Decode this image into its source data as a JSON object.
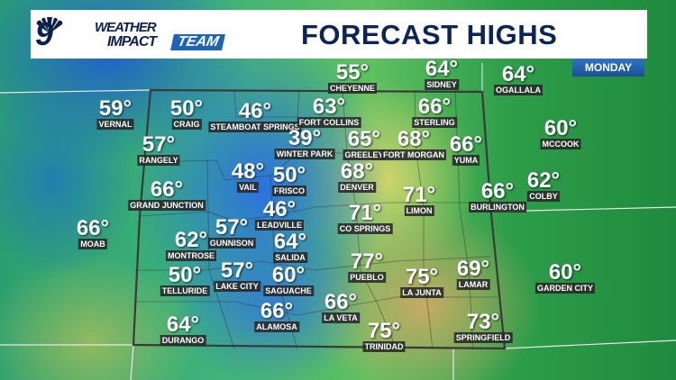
{
  "header": {
    "logo": {
      "channel": "9",
      "line1": "WEATHER",
      "line2": "IMPACT",
      "badge": "TEAM"
    },
    "title": "FORECAST HIGHS",
    "day": "MONDAY"
  },
  "colors": {
    "title": "#0d2457",
    "badge": "#1e63b5",
    "label_bg": "#282828"
  },
  "cities": [
    {
      "name": "CHEYENNE",
      "temp": "55°"
    },
    {
      "name": "SIDNEY",
      "temp": "64°"
    },
    {
      "name": "OGALLALA",
      "temp": "64°"
    },
    {
      "name": "VERNAL",
      "temp": "59°"
    },
    {
      "name": "CRAIG",
      "temp": "50°"
    },
    {
      "name": "STEAMBOAT SPRINGS",
      "temp": "46°"
    },
    {
      "name": "FORT COLLINS",
      "temp": "63°"
    },
    {
      "name": "STERLING",
      "temp": "66°"
    },
    {
      "name": "MCCOOK",
      "temp": "60°"
    },
    {
      "name": "RANGELY",
      "temp": "57°"
    },
    {
      "name": "WINTER PARK",
      "temp": "39°"
    },
    {
      "name": "GREELEY",
      "temp": "65°"
    },
    {
      "name": "FORT MORGAN",
      "temp": "68°"
    },
    {
      "name": "YUMA",
      "temp": "66°"
    },
    {
      "name": "VAIL",
      "temp": "48°"
    },
    {
      "name": "FRISCO",
      "temp": "50°"
    },
    {
      "name": "DENVER",
      "temp": "68°"
    },
    {
      "name": "COLBY",
      "temp": "62°"
    },
    {
      "name": "GRAND JUNCTION",
      "temp": "66°"
    },
    {
      "name": "LIMON",
      "temp": "71°"
    },
    {
      "name": "BURLINGTON",
      "temp": "66°"
    },
    {
      "name": "LEADVILLE",
      "temp": "46°"
    },
    {
      "name": "CO SPRINGS",
      "temp": "71°"
    },
    {
      "name": "MOAB",
      "temp": "66°"
    },
    {
      "name": "GUNNISON",
      "temp": "57°"
    },
    {
      "name": "MONTROSE",
      "temp": "62°"
    },
    {
      "name": "SALIDA",
      "temp": "64°"
    },
    {
      "name": "PUEBLO",
      "temp": "77°"
    },
    {
      "name": "LAMAR",
      "temp": "69°"
    },
    {
      "name": "LA JUNTA",
      "temp": "75°"
    },
    {
      "name": "GARDEN CITY",
      "temp": "60°"
    },
    {
      "name": "TELLURIDE",
      "temp": "50°"
    },
    {
      "name": "LAKE CITY",
      "temp": "57°"
    },
    {
      "name": "SAGUACHE",
      "temp": "60°"
    },
    {
      "name": "LA VETA",
      "temp": "66°"
    },
    {
      "name": "ALAMOSA",
      "temp": "66°"
    },
    {
      "name": "TRINIDAD",
      "temp": "75°"
    },
    {
      "name": "DURANGO",
      "temp": "64°"
    },
    {
      "name": "SPRINGFIELD",
      "temp": "73°"
    }
  ]
}
